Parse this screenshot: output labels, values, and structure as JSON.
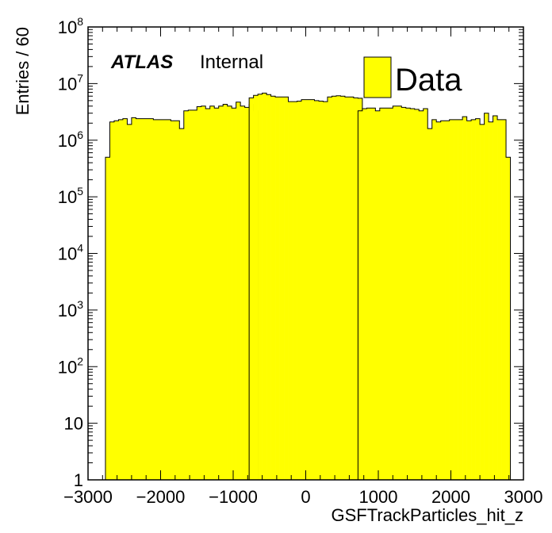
{
  "chart_data": {
    "type": "bar",
    "histogram": true,
    "xlabel": "GSFTrackParticles_hit_z",
    "ylabel": "Entries / 60",
    "xlim": [
      -3000,
      3000
    ],
    "ylim": [
      1,
      100000000
    ],
    "log_y": true,
    "bin_width": 60,
    "grid": false,
    "legend_position": "top-right",
    "fill_color": "#ffff00",
    "edge_color": "#000000",
    "x_ticks": [
      {
        "value": -3000,
        "label": "−3000"
      },
      {
        "value": -2000,
        "label": "−2000"
      },
      {
        "value": -1000,
        "label": "−1000"
      },
      {
        "value": 0,
        "label": "0"
      },
      {
        "value": 1000,
        "label": "1000"
      },
      {
        "value": 2000,
        "label": "2000"
      },
      {
        "value": 3000,
        "label": "3000"
      }
    ],
    "y_ticks": [
      {
        "value": 1,
        "base": "1",
        "exp": ""
      },
      {
        "value": 10,
        "base": "10",
        "exp": ""
      },
      {
        "value": 100,
        "base": "10",
        "exp": "2"
      },
      {
        "value": 1000,
        "base": "10",
        "exp": "3"
      },
      {
        "value": 10000,
        "base": "10",
        "exp": "4"
      },
      {
        "value": 100000,
        "base": "10",
        "exp": "5"
      },
      {
        "value": 1000000,
        "base": "10",
        "exp": "6"
      },
      {
        "value": 10000000,
        "base": "10",
        "exp": "7"
      },
      {
        "value": 100000000,
        "base": "10",
        "exp": "8"
      }
    ],
    "series": [
      {
        "name": "Data",
        "segments": [
          {
            "x_start": -2760,
            "values": [
              500000,
              2100000,
              2200000,
              2300000,
              2400000,
              1900000,
              2500000,
              2400000,
              2400000,
              2400000,
              2400000,
              2300000,
              2300000,
              2300000,
              2300000,
              2200000,
              2200000,
              1600000,
              3300000,
              3400000,
              3400000,
              3900000,
              4000000,
              3600000,
              4000000,
              3700000,
              4000000,
              4300000,
              4000000,
              3700000,
              4700000,
              4000000,
              3800000,
              4300000,
              3300000
            ]
          },
          {
            "x_start": -780,
            "values": [
              5600000,
              6200000,
              6500000,
              6800000,
              6400000,
              6000000,
              5800000,
              5800000,
              5800000,
              4800000,
              4800000,
              4900000,
              5200000,
              5200000,
              5200000,
              5000000,
              4900000,
              4800000,
              5800000,
              6000000,
              6100000,
              6000000,
              5800000,
              5800000,
              5600000,
              5500000
            ]
          },
          {
            "x_start": 720,
            "values": [
              3300000,
              3600000,
              3700000,
              3700000,
              3300000,
              3700000,
              3700000,
              3700000,
              4000000,
              4000000,
              3800000,
              3700000,
              3600000,
              3500000,
              3300000,
              3600000,
              1600000,
              2300000,
              2100000,
              2200000,
              2200000,
              2300000,
              2300000,
              2300000,
              2600000,
              2200000,
              2300000,
              2400000,
              1900000,
              3000000,
              2100000,
              2700000,
              2300000,
              2300000,
              500000
            ]
          }
        ]
      }
    ],
    "annotations": {
      "experiment": "ATLAS",
      "status": "Internal"
    }
  }
}
